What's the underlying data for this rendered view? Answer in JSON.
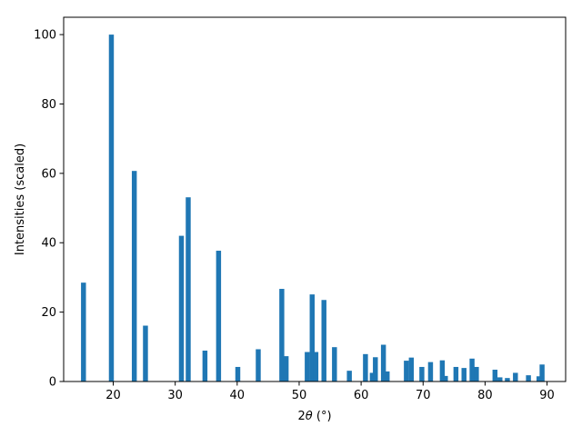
{
  "chart_data": {
    "type": "bar",
    "xlabel_prefix": "2",
    "xlabel_symbol": "θ",
    "xlabel_unit": " (°)",
    "ylabel": "Intensities (scaled)",
    "xlim": [
      12,
      93
    ],
    "ylim": [
      0,
      105
    ],
    "x_ticks": [
      20,
      30,
      40,
      50,
      60,
      70,
      80,
      90
    ],
    "y_ticks": [
      0,
      20,
      40,
      60,
      80,
      100
    ],
    "bar_width": 0.8,
    "color": "#1f77b4",
    "grid": false,
    "x": [
      15.2,
      19.7,
      23.4,
      25.2,
      31.0,
      32.1,
      34.8,
      37.0,
      40.1,
      43.4,
      47.2,
      47.9,
      51.3,
      52.1,
      52.7,
      54.0,
      55.7,
      58.1,
      60.7,
      61.8,
      62.3,
      63.6,
      64.2,
      67.3,
      68.1,
      69.8,
      71.2,
      73.1,
      73.6,
      75.3,
      76.6,
      77.9,
      78.6,
      81.6,
      82.4,
      83.6,
      84.9,
      87.0,
      88.7,
      89.2
    ],
    "values": [
      28.5,
      100,
      60.7,
      16.1,
      42.0,
      53.1,
      8.9,
      37.7,
      4.2,
      9.3,
      26.7,
      7.3,
      8.5,
      25.1,
      8.5,
      23.5,
      9.9,
      3.1,
      7.9,
      2.5,
      7.0,
      10.6,
      2.9,
      6.0,
      6.9,
      4.2,
      5.6,
      6.1,
      1.6,
      4.2,
      3.9,
      6.6,
      4.2,
      3.4,
      1.2,
      1.0,
      2.5,
      1.8,
      1.5,
      4.9
    ]
  }
}
